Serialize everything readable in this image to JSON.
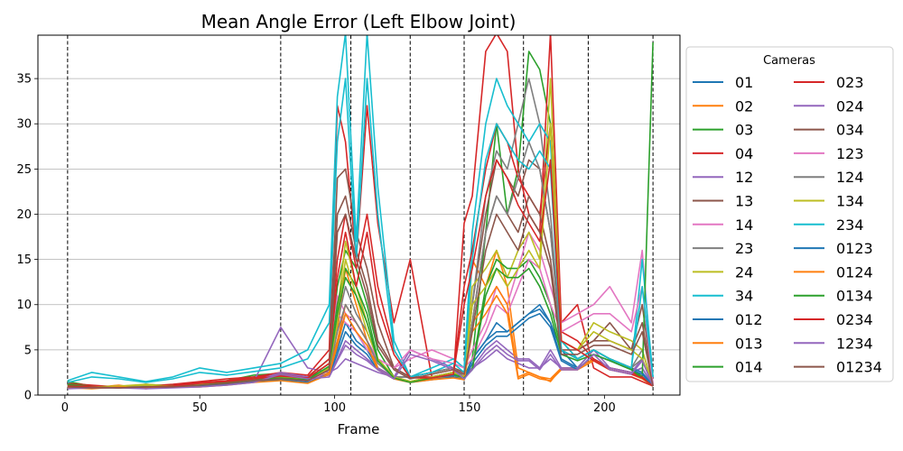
{
  "chart_data": {
    "type": "line",
    "title": "Mean Angle Error (Left Elbow Joint)",
    "xlabel": "Frame",
    "ylabel": "",
    "xlim": [
      -10,
      228
    ],
    "ylim": [
      0,
      39.8
    ],
    "x_ticks": [
      0,
      50,
      100,
      150,
      200
    ],
    "y_ticks": [
      0,
      5,
      10,
      15,
      20,
      25,
      30,
      35
    ],
    "grid": "horizontal",
    "legend": {
      "title": "Cameras",
      "placement": "outside-right",
      "columns": 2
    },
    "vlines": [
      1,
      80,
      106,
      128,
      148,
      170,
      194,
      218
    ],
    "x": [
      1,
      10,
      20,
      30,
      40,
      50,
      60,
      70,
      80,
      90,
      98,
      101,
      104,
      108,
      112,
      116,
      122,
      128,
      136,
      144,
      148,
      151,
      156,
      160,
      164,
      168,
      172,
      176,
      180,
      184,
      190,
      196,
      202,
      210,
      214,
      218
    ],
    "series": [
      {
        "name": "01",
        "color": "#1f77b4",
        "values": [
          1.2,
          1.0,
          0.8,
          1.1,
          0.9,
          1.3,
          1.5,
          2.0,
          2.2,
          1.8,
          3.0,
          6.0,
          9.0,
          7.0,
          5.0,
          3.0,
          2.0,
          1.5,
          2.0,
          2.5,
          2.0,
          4.0,
          6.0,
          8.0,
          7.0,
          8.0,
          9.0,
          9.5,
          8.0,
          5.0,
          3.0,
          4.0,
          3.0,
          2.5,
          3.0,
          1.0
        ]
      },
      {
        "name": "02",
        "color": "#ff7f0e",
        "values": [
          1.0,
          0.8,
          1.1,
          0.7,
          1.0,
          1.2,
          1.4,
          1.8,
          2.0,
          1.6,
          3.0,
          7.0,
          14.0,
          10.0,
          6.0,
          3.0,
          2.0,
          1.5,
          1.8,
          2.2,
          2.0,
          15.0,
          12.0,
          16.0,
          12.0,
          3.0,
          2.5,
          2.0,
          1.5,
          3.0,
          3.0,
          5.0,
          4.0,
          3.0,
          2.0,
          1.0
        ]
      },
      {
        "name": "03",
        "color": "#2ca02c",
        "values": [
          1.5,
          1.0,
          0.9,
          1.2,
          1.0,
          1.1,
          1.6,
          2.2,
          2.4,
          2.0,
          4.0,
          12.0,
          16.0,
          14.0,
          10.0,
          5.0,
          2.0,
          1.5,
          2.0,
          2.5,
          2.0,
          4.0,
          18.0,
          30.0,
          20.0,
          25.0,
          38.0,
          36.0,
          30.0,
          6.0,
          4.0,
          5.0,
          4.0,
          3.0,
          2.0,
          1.0
        ]
      },
      {
        "name": "04",
        "color": "#d62728",
        "values": [
          1.3,
          1.1,
          0.9,
          1.0,
          1.2,
          1.5,
          1.8,
          2.0,
          2.5,
          2.2,
          5.0,
          32.0,
          28.0,
          15.0,
          32.0,
          19.0,
          8.0,
          15.0,
          2.0,
          2.0,
          19.0,
          22.0,
          38.0,
          40.0,
          38.0,
          25.0,
          20.0,
          18.0,
          40.0,
          8.0,
          10.0,
          3.0,
          2.0,
          2.0,
          1.5,
          1.0
        ]
      },
      {
        "name": "12",
        "color": "#9467bd",
        "values": [
          0.8,
          0.9,
          1.0,
          0.8,
          0.9,
          1.0,
          1.2,
          1.5,
          7.5,
          3.0,
          2.5,
          3.0,
          4.0,
          3.5,
          3.0,
          2.5,
          2.0,
          2.0,
          2.5,
          3.0,
          2.0,
          3.0,
          4.0,
          5.0,
          4.0,
          3.5,
          3.0,
          3.0,
          4.0,
          3.0,
          3.0,
          4.0,
          3.0,
          2.5,
          3.0,
          1.0
        ]
      },
      {
        "name": "13",
        "color": "#8c564b",
        "values": [
          1.0,
          0.9,
          0.8,
          1.0,
          1.1,
          1.3,
          1.5,
          1.8,
          2.0,
          1.8,
          3.0,
          24.0,
          25.0,
          18.0,
          14.0,
          8.0,
          3.0,
          2.0,
          2.5,
          3.0,
          2.5,
          10.0,
          20.0,
          26.0,
          24.0,
          22.0,
          26.0,
          25.0,
          18.0,
          6.0,
          5.0,
          6.0,
          8.0,
          5.0,
          10.0,
          1.0
        ]
      },
      {
        "name": "14",
        "color": "#e377c2",
        "values": [
          0.9,
          0.8,
          1.0,
          0.9,
          1.0,
          1.1,
          1.3,
          1.6,
          1.8,
          1.5,
          3.0,
          11.0,
          9.0,
          8.0,
          6.0,
          4.0,
          3.0,
          4.0,
          5.0,
          4.0,
          3.0,
          5.0,
          8.0,
          12.0,
          10.0,
          14.0,
          18.0,
          16.0,
          12.0,
          8.0,
          9.0,
          10.0,
          12.0,
          8.0,
          16.0,
          1.0
        ]
      },
      {
        "name": "23",
        "color": "#7f7f7f",
        "values": [
          1.1,
          1.0,
          0.9,
          1.0,
          1.0,
          1.2,
          1.4,
          1.7,
          2.0,
          1.7,
          3.0,
          8.0,
          12.0,
          9.0,
          7.0,
          4.0,
          2.0,
          2.0,
          2.5,
          3.0,
          2.0,
          10.0,
          22.0,
          27.0,
          25.0,
          30.0,
          35.0,
          30.0,
          20.0,
          5.0,
          4.0,
          5.0,
          4.0,
          3.0,
          5.0,
          1.0
        ]
      },
      {
        "name": "24",
        "color": "#bcbd22",
        "values": [
          1.0,
          0.9,
          1.0,
          1.2,
          1.0,
          1.2,
          1.5,
          1.9,
          2.1,
          1.8,
          3.0,
          9.0,
          17.0,
          12.0,
          8.0,
          4.0,
          2.0,
          1.5,
          2.0,
          2.5,
          2.0,
          12.0,
          14.0,
          16.0,
          13.0,
          16.0,
          18.0,
          15.0,
          35.0,
          6.0,
          5.0,
          8.0,
          7.0,
          6.0,
          5.0,
          1.0
        ]
      },
      {
        "name": "34",
        "color": "#17becf",
        "values": [
          1.6,
          2.5,
          2.0,
          1.5,
          2.0,
          3.0,
          2.5,
          3.0,
          3.5,
          5.0,
          10.0,
          33.0,
          40.0,
          17.0,
          40.0,
          23.0,
          6.0,
          2.0,
          3.0,
          4.0,
          3.0,
          18.0,
          30.0,
          35.0,
          32.0,
          30.0,
          28.0,
          30.0,
          28.0,
          6.0,
          4.0,
          5.0,
          4.0,
          3.0,
          15.0,
          2.0
        ]
      },
      {
        "name": "012",
        "color": "#1f77b4",
        "values": [
          1.0,
          0.8,
          0.9,
          1.0,
          0.9,
          1.1,
          1.3,
          1.6,
          1.8,
          1.5,
          2.5,
          5.0,
          8.0,
          6.0,
          5.0,
          3.0,
          2.0,
          1.5,
          1.8,
          2.2,
          1.8,
          4.0,
          6.0,
          7.0,
          7.0,
          8.0,
          9.0,
          10.0,
          8.0,
          4.0,
          3.0,
          5.0,
          4.0,
          3.0,
          2.5,
          1.0
        ]
      },
      {
        "name": "013",
        "color": "#ff7f0e",
        "values": [
          0.9,
          0.8,
          1.0,
          0.9,
          1.0,
          1.0,
          1.2,
          1.5,
          1.7,
          1.4,
          2.5,
          6.0,
          10.0,
          8.0,
          6.0,
          3.0,
          2.0,
          1.5,
          1.8,
          2.0,
          1.8,
          8.0,
          10.0,
          12.0,
          10.0,
          2.0,
          2.5,
          2.0,
          1.8,
          3.0,
          3.0,
          4.0,
          3.0,
          2.5,
          2.0,
          1.0
        ]
      },
      {
        "name": "014",
        "color": "#2ca02c",
        "values": [
          1.2,
          1.0,
          0.8,
          1.0,
          1.1,
          1.2,
          1.5,
          1.9,
          2.0,
          1.8,
          3.5,
          10.0,
          14.0,
          12.0,
          9.0,
          4.0,
          2.0,
          1.5,
          2.0,
          2.5,
          2.0,
          3.0,
          12.0,
          15.0,
          14.0,
          14.0,
          15.0,
          13.0,
          10.0,
          5.0,
          4.0,
          5.0,
          4.0,
          3.0,
          2.0,
          39.0
        ]
      },
      {
        "name": "023",
        "color": "#d62728",
        "values": [
          1.1,
          1.0,
          0.9,
          1.0,
          1.1,
          1.4,
          1.6,
          1.9,
          2.3,
          2.0,
          4.0,
          15.0,
          20.0,
          14.0,
          20.0,
          12.0,
          5.0,
          2.0,
          2.0,
          2.5,
          12.0,
          16.0,
          25.0,
          30.0,
          28.0,
          24.0,
          22.0,
          20.0,
          30.0,
          7.0,
          6.0,
          4.0,
          3.0,
          2.5,
          2.0,
          1.0
        ]
      },
      {
        "name": "024",
        "color": "#9467bd",
        "values": [
          0.8,
          0.9,
          0.9,
          0.8,
          0.9,
          1.0,
          1.2,
          1.5,
          2.5,
          2.0,
          2.2,
          4.0,
          6.0,
          5.0,
          4.0,
          3.0,
          2.0,
          5.0,
          4.0,
          3.0,
          2.0,
          3.0,
          5.0,
          6.0,
          5.0,
          4.0,
          4.0,
          3.0,
          5.0,
          3.0,
          3.0,
          5.0,
          3.0,
          2.5,
          4.0,
          1.0
        ]
      },
      {
        "name": "034",
        "color": "#8c564b",
        "values": [
          1.0,
          0.9,
          0.8,
          1.0,
          1.0,
          1.2,
          1.4,
          1.7,
          1.9,
          1.7,
          3.0,
          20.0,
          22.0,
          16.0,
          12.0,
          6.0,
          3.0,
          2.0,
          2.5,
          3.0,
          2.5,
          8.0,
          18.0,
          22.0,
          20.0,
          18.0,
          22.0,
          20.0,
          15.0,
          5.0,
          5.0,
          6.0,
          6.0,
          5.0,
          8.0,
          1.0
        ]
      },
      {
        "name": "123",
        "color": "#e377c2",
        "values": [
          0.9,
          0.8,
          0.9,
          0.9,
          1.0,
          1.1,
          1.3,
          1.5,
          1.7,
          1.4,
          2.8,
          9.0,
          8.0,
          7.0,
          5.0,
          4.0,
          3.0,
          5.0,
          4.0,
          3.5,
          3.0,
          4.0,
          7.0,
          10.0,
          9.0,
          12.0,
          15.0,
          14.0,
          10.0,
          7.0,
          8.0,
          9.0,
          9.0,
          7.0,
          12.0,
          1.0
        ]
      },
      {
        "name": "124",
        "color": "#7f7f7f",
        "values": [
          1.0,
          0.9,
          0.9,
          1.0,
          1.0,
          1.1,
          1.3,
          1.6,
          1.9,
          1.6,
          2.8,
          7.0,
          10.0,
          8.0,
          6.0,
          3.5,
          2.0,
          2.0,
          2.5,
          3.0,
          2.0,
          8.0,
          18.0,
          22.0,
          20.0,
          24.0,
          28.0,
          25.0,
          18.0,
          5.0,
          4.0,
          5.0,
          4.0,
          3.0,
          4.0,
          1.0
        ]
      },
      {
        "name": "134",
        "color": "#bcbd22",
        "values": [
          1.0,
          0.9,
          1.0,
          1.1,
          1.0,
          1.2,
          1.4,
          1.8,
          2.0,
          1.7,
          3.0,
          8.0,
          15.0,
          11.0,
          7.0,
          4.0,
          2.0,
          1.5,
          2.0,
          2.5,
          2.0,
          10.0,
          12.0,
          14.0,
          12.0,
          14.0,
          16.0,
          14.0,
          30.0,
          6.0,
          5.0,
          7.0,
          6.0,
          5.0,
          4.0,
          1.0
        ]
      },
      {
        "name": "234",
        "color": "#17becf",
        "values": [
          1.4,
          2.0,
          1.8,
          1.4,
          1.8,
          2.5,
          2.2,
          2.6,
          3.0,
          4.0,
          8.0,
          28.0,
          35.0,
          15.0,
          35.0,
          20.0,
          5.0,
          2.0,
          2.5,
          3.5,
          2.5,
          15.0,
          26.0,
          30.0,
          28.0,
          26.0,
          25.0,
          27.0,
          25.0,
          5.0,
          4.0,
          5.0,
          4.0,
          3.0,
          12.0,
          2.0
        ]
      },
      {
        "name": "0123",
        "color": "#1f77b4",
        "values": [
          0.9,
          0.8,
          0.8,
          0.9,
          0.9,
          1.0,
          1.2,
          1.5,
          1.7,
          1.4,
          2.3,
          4.5,
          7.0,
          5.5,
          4.5,
          2.8,
          1.8,
          1.4,
          1.7,
          2.0,
          1.7,
          3.5,
          5.5,
          6.5,
          6.5,
          7.5,
          8.5,
          9.0,
          7.5,
          3.8,
          2.8,
          4.5,
          3.8,
          2.8,
          2.3,
          1.0
        ]
      },
      {
        "name": "0124",
        "color": "#ff7f0e",
        "values": [
          0.8,
          0.7,
          0.9,
          0.8,
          0.9,
          0.9,
          1.1,
          1.4,
          1.6,
          1.3,
          2.3,
          5.5,
          9.0,
          7.0,
          5.5,
          2.8,
          1.8,
          1.4,
          1.7,
          1.9,
          1.7,
          7.0,
          9.0,
          11.0,
          9.0,
          1.8,
          2.3,
          1.8,
          1.6,
          2.8,
          2.8,
          3.8,
          2.8,
          2.3,
          1.8,
          1.0
        ]
      },
      {
        "name": "0134",
        "color": "#2ca02c",
        "values": [
          1.1,
          0.9,
          0.8,
          0.9,
          1.0,
          1.1,
          1.4,
          1.8,
          1.9,
          1.7,
          3.2,
          9.0,
          13.0,
          11.0,
          8.0,
          3.8,
          1.9,
          1.4,
          1.9,
          2.3,
          1.9,
          2.8,
          11.0,
          14.0,
          13.0,
          13.0,
          14.0,
          12.0,
          9.0,
          4.5,
          3.8,
          4.5,
          3.8,
          2.8,
          1.9,
          1.0
        ]
      },
      {
        "name": "0234",
        "color": "#d62728",
        "values": [
          1.0,
          0.9,
          0.8,
          0.9,
          1.0,
          1.3,
          1.5,
          1.8,
          2.1,
          1.9,
          3.5,
          13.0,
          18.0,
          12.0,
          18.0,
          10.0,
          4.5,
          1.9,
          1.9,
          2.3,
          10.0,
          14.0,
          22.0,
          26.0,
          24.0,
          21.0,
          19.0,
          17.0,
          26.0,
          6.0,
          5.0,
          3.8,
          2.8,
          2.3,
          1.9,
          1.0
        ]
      },
      {
        "name": "1234",
        "color": "#9467bd",
        "values": [
          0.7,
          0.8,
          0.8,
          0.7,
          0.8,
          0.9,
          1.1,
          1.4,
          2.3,
          1.8,
          2.0,
          3.8,
          5.5,
          4.5,
          3.8,
          2.8,
          1.8,
          4.5,
          3.8,
          2.8,
          1.8,
          2.8,
          4.5,
          5.5,
          4.5,
          3.8,
          3.8,
          2.8,
          4.5,
          2.8,
          2.8,
          4.5,
          2.8,
          2.3,
          3.8,
          1.0
        ]
      },
      {
        "name": "01234",
        "color": "#8c564b",
        "values": [
          0.9,
          0.8,
          0.8,
          0.9,
          0.9,
          1.1,
          1.3,
          1.6,
          1.8,
          1.6,
          2.8,
          18.0,
          20.0,
          15.0,
          11.0,
          5.5,
          2.8,
          1.8,
          2.3,
          2.8,
          2.3,
          7.0,
          16.0,
          20.0,
          18.0,
          16.0,
          20.0,
          18.0,
          14.0,
          4.5,
          4.5,
          5.5,
          5.5,
          4.5,
          7.0,
          1.0
        ]
      }
    ]
  }
}
